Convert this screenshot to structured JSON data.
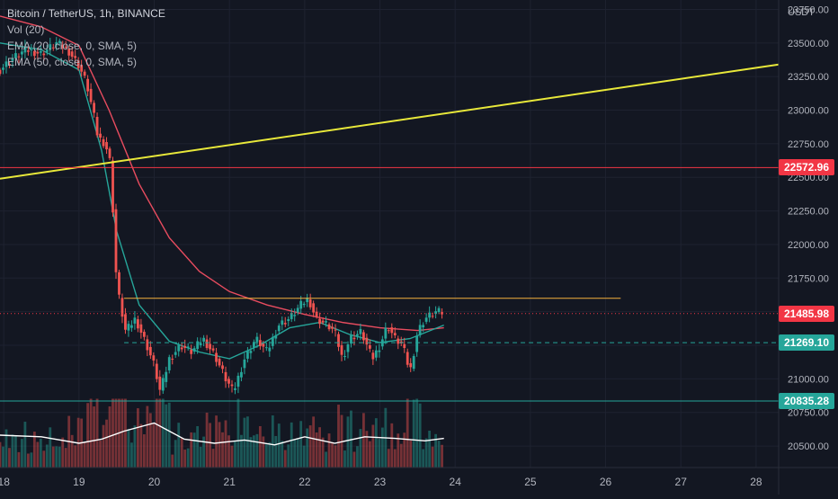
{
  "legend": {
    "title": "Bitcoin / TetherUS, 1h, BINANCE",
    "vol": "Vol (20)",
    "ema1": "EMA (20, close, 0, SMA, 5)",
    "ema2": "EMA (50, close, 0, SMA, 5)"
  },
  "price_axis_unit": "USDT",
  "chart_data": {
    "type": "candlestick",
    "symbol": "Bitcoin / TetherUS",
    "interval": "1h",
    "exchange": "BINANCE",
    "y_ticks": [
      20500,
      20750,
      21000,
      21250,
      21500,
      21750,
      22000,
      22250,
      22500,
      22750,
      23000,
      23250,
      23500,
      23750
    ],
    "ylim": [
      20340,
      23820
    ],
    "x_ticks": [
      "18",
      "19",
      "20",
      "21",
      "22",
      "23",
      "24",
      "25",
      "26",
      "27",
      "28"
    ],
    "xlim": [
      17.95,
      28.3
    ],
    "grid": true,
    "price_path": [
      [
        17.95,
        23300
      ],
      [
        18.1,
        23380
      ],
      [
        18.3,
        23450
      ],
      [
        18.5,
        23420
      ],
      [
        18.7,
        23500
      ],
      [
        18.85,
        23450
      ],
      [
        19.0,
        23330
      ],
      [
        19.1,
        23200
      ],
      [
        19.2,
        22950
      ],
      [
        19.25,
        22800
      ],
      [
        19.35,
        22750
      ],
      [
        19.42,
        22600
      ],
      [
        19.5,
        21700
      ],
      [
        19.62,
        21350
      ],
      [
        19.75,
        21450
      ],
      [
        19.9,
        21250
      ],
      [
        20.0,
        21100
      ],
      [
        20.08,
        20900
      ],
      [
        20.2,
        21150
      ],
      [
        20.35,
        21250
      ],
      [
        20.5,
        21200
      ],
      [
        20.65,
        21300
      ],
      [
        20.8,
        21180
      ],
      [
        20.95,
        21000
      ],
      [
        21.05,
        20900
      ],
      [
        21.2,
        21150
      ],
      [
        21.35,
        21300
      ],
      [
        21.5,
        21200
      ],
      [
        21.65,
        21400
      ],
      [
        21.8,
        21450
      ],
      [
        21.95,
        21550
      ],
      [
        22.05,
        21600
      ],
      [
        22.15,
        21450
      ],
      [
        22.3,
        21400
      ],
      [
        22.4,
        21350
      ],
      [
        22.5,
        21150
      ],
      [
        22.6,
        21300
      ],
      [
        22.75,
        21350
      ],
      [
        22.9,
        21150
      ],
      [
        23.0,
        21250
      ],
      [
        23.1,
        21400
      ],
      [
        23.2,
        21300
      ],
      [
        23.3,
        21250
      ],
      [
        23.4,
        21050
      ],
      [
        23.5,
        21350
      ],
      [
        23.6,
        21450
      ],
      [
        23.75,
        21500
      ],
      [
        23.85,
        21490
      ]
    ],
    "ema20": [
      [
        17.95,
        23500
      ],
      [
        18.5,
        23450
      ],
      [
        19.0,
        23300
      ],
      [
        19.3,
        22700
      ],
      [
        19.5,
        22100
      ],
      [
        19.8,
        21550
      ],
      [
        20.2,
        21280
      ],
      [
        20.6,
        21200
      ],
      [
        21.0,
        21150
      ],
      [
        21.4,
        21250
      ],
      [
        21.8,
        21380
      ],
      [
        22.2,
        21420
      ],
      [
        22.6,
        21330
      ],
      [
        23.0,
        21270
      ],
      [
        23.4,
        21300
      ],
      [
        23.85,
        21400
      ]
    ],
    "ema50": [
      [
        17.95,
        23700
      ],
      [
        18.5,
        23620
      ],
      [
        19.0,
        23480
      ],
      [
        19.4,
        23000
      ],
      [
        19.8,
        22450
      ],
      [
        20.2,
        22050
      ],
      [
        20.6,
        21800
      ],
      [
        21.0,
        21650
      ],
      [
        21.5,
        21550
      ],
      [
        22.0,
        21480
      ],
      [
        22.5,
        21420
      ],
      [
        23.0,
        21380
      ],
      [
        23.5,
        21360
      ],
      [
        23.85,
        21380
      ]
    ],
    "volume_ma": [
      [
        17.95,
        0.4
      ],
      [
        18.5,
        0.38
      ],
      [
        19.0,
        0.3
      ],
      [
        19.3,
        0.35
      ],
      [
        19.6,
        0.45
      ],
      [
        20.0,
        0.55
      ],
      [
        20.4,
        0.35
      ],
      [
        20.8,
        0.3
      ],
      [
        21.2,
        0.34
      ],
      [
        21.6,
        0.28
      ],
      [
        22.0,
        0.38
      ],
      [
        22.4,
        0.3
      ],
      [
        22.8,
        0.38
      ],
      [
        23.2,
        0.36
      ],
      [
        23.6,
        0.33
      ],
      [
        23.85,
        0.36
      ]
    ],
    "trendline": {
      "start": [
        17.95,
        22490
      ],
      "end": [
        28.3,
        23340
      ],
      "color": "#e8e83a"
    },
    "resistance": {
      "price": 21600,
      "from": 19.6,
      "to": 26.2,
      "color": "#f5b13d"
    },
    "support_dashed": {
      "price": 21269.1,
      "from": 19.6,
      "to": 28.3,
      "color": "#26a69a"
    },
    "price_levels": [
      {
        "label": "22572.96",
        "price": 22572.96,
        "color": "#f23645"
      },
      {
        "label": "21485.98",
        "price": 21485.98,
        "color": "#f23645"
      },
      {
        "label": "21269.10",
        "price": 21269.1,
        "color": "#26a69a"
      },
      {
        "label": "20835.28",
        "price": 20835.28,
        "color": "#26a69a"
      }
    ],
    "colors": {
      "up": "#26a69a",
      "down": "#ef5350",
      "ema20": "#26a69a",
      "ema50": "#e84c5f",
      "volume_ma": "#ffffff"
    }
  }
}
